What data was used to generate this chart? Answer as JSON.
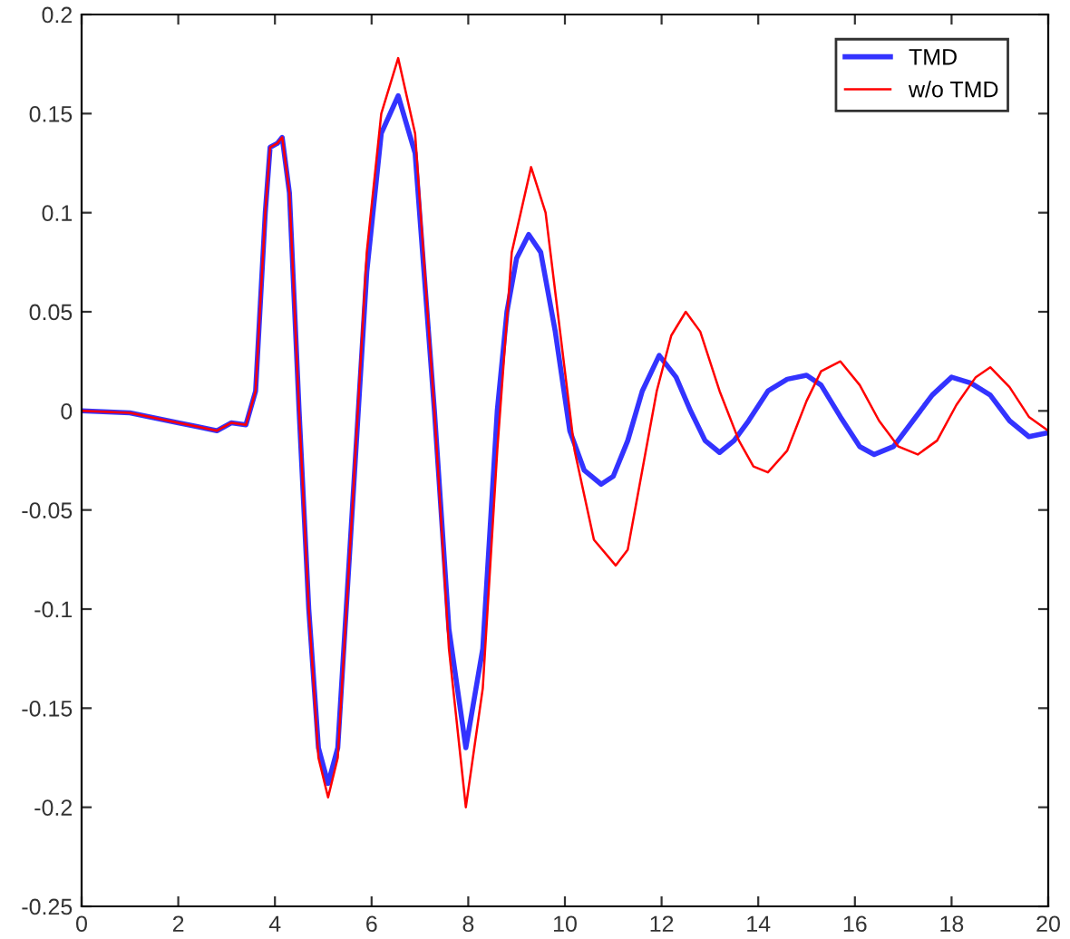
{
  "chart_data": {
    "type": "line",
    "xlim": [
      0,
      20
    ],
    "ylim": [
      -0.25,
      0.2
    ],
    "xticks": [
      0,
      2,
      4,
      6,
      8,
      10,
      12,
      14,
      16,
      18,
      20
    ],
    "yticks": [
      -0.25,
      -0.2,
      -0.15,
      -0.1,
      -0.05,
      0,
      0.05,
      0.1,
      0.15,
      0.2
    ],
    "grid": false,
    "legend": "top right",
    "marker": "none",
    "line_style": "solid",
    "series": [
      {
        "name": "TMD",
        "color": "#3333ff",
        "x": [
          0,
          1,
          2,
          2.4,
          2.8,
          3.1,
          3.4,
          3.6,
          3.8,
          3.9,
          4.05,
          4.15,
          4.3,
          4.5,
          4.7,
          4.9,
          5.1,
          5.3,
          5.6,
          5.9,
          6.2,
          6.55,
          6.9,
          7.3,
          7.6,
          7.95,
          8.3,
          8.6,
          8.8,
          9.0,
          9.25,
          9.5,
          9.8,
          10.1,
          10.4,
          10.75,
          11.0,
          11.3,
          11.6,
          11.95,
          12.3,
          12.6,
          12.9,
          13.2,
          13.5,
          13.8,
          14.2,
          14.6,
          15.0,
          15.3,
          15.7,
          16.1,
          16.4,
          16.8,
          17.2,
          17.6,
          18.0,
          18.4,
          18.8,
          19.2,
          19.6,
          20
        ],
        "values": [
          0,
          -0.001,
          -0.006,
          -0.008,
          -0.01,
          -0.006,
          -0.007,
          0.01,
          0.1,
          0.133,
          0.135,
          0.138,
          0.11,
          0.0,
          -0.1,
          -0.17,
          -0.188,
          -0.17,
          -0.05,
          0.07,
          0.14,
          0.159,
          0.13,
          0.0,
          -0.11,
          -0.17,
          -0.12,
          0.0,
          0.05,
          0.077,
          0.089,
          0.08,
          0.04,
          -0.01,
          -0.03,
          -0.037,
          -0.033,
          -0.015,
          0.01,
          0.028,
          0.017,
          0.0,
          -0.015,
          -0.021,
          -0.015,
          -0.005,
          0.01,
          0.016,
          0.018,
          0.013,
          -0.003,
          -0.018,
          -0.022,
          -0.018,
          -0.005,
          0.008,
          0.017,
          0.014,
          0.008,
          -0.005,
          -0.013,
          -0.011
        ]
      },
      {
        "name": "w/o TMD",
        "color": "#ff0000",
        "x": [
          0,
          1,
          2,
          2.4,
          2.8,
          3.1,
          3.4,
          3.6,
          3.8,
          3.9,
          4.05,
          4.15,
          4.3,
          4.5,
          4.7,
          4.9,
          5.1,
          5.3,
          5.6,
          5.9,
          6.2,
          6.55,
          6.9,
          7.3,
          7.6,
          7.95,
          8.3,
          8.6,
          8.9,
          9.3,
          9.6,
          9.9,
          10.2,
          10.6,
          11.05,
          11.3,
          11.6,
          11.9,
          12.2,
          12.5,
          12.8,
          13.2,
          13.6,
          13.9,
          14.2,
          14.6,
          15.0,
          15.3,
          15.7,
          16.1,
          16.5,
          16.9,
          17.3,
          17.7,
          18.1,
          18.5,
          18.8,
          19.2,
          19.6,
          20
        ],
        "values": [
          0,
          -0.001,
          -0.006,
          -0.008,
          -0.01,
          -0.006,
          -0.007,
          0.01,
          0.1,
          0.133,
          0.135,
          0.138,
          0.11,
          0.0,
          -0.1,
          -0.175,
          -0.195,
          -0.175,
          -0.05,
          0.08,
          0.15,
          0.178,
          0.14,
          0.0,
          -0.12,
          -0.2,
          -0.14,
          -0.02,
          0.08,
          0.123,
          0.1,
          0.04,
          -0.02,
          -0.065,
          -0.078,
          -0.07,
          -0.03,
          0.01,
          0.038,
          0.05,
          0.04,
          0.01,
          -0.015,
          -0.028,
          -0.031,
          -0.02,
          0.005,
          0.02,
          0.025,
          0.013,
          -0.005,
          -0.018,
          -0.022,
          -0.015,
          0.003,
          0.017,
          0.022,
          0.012,
          -0.003,
          -0.01
        ]
      }
    ]
  }
}
